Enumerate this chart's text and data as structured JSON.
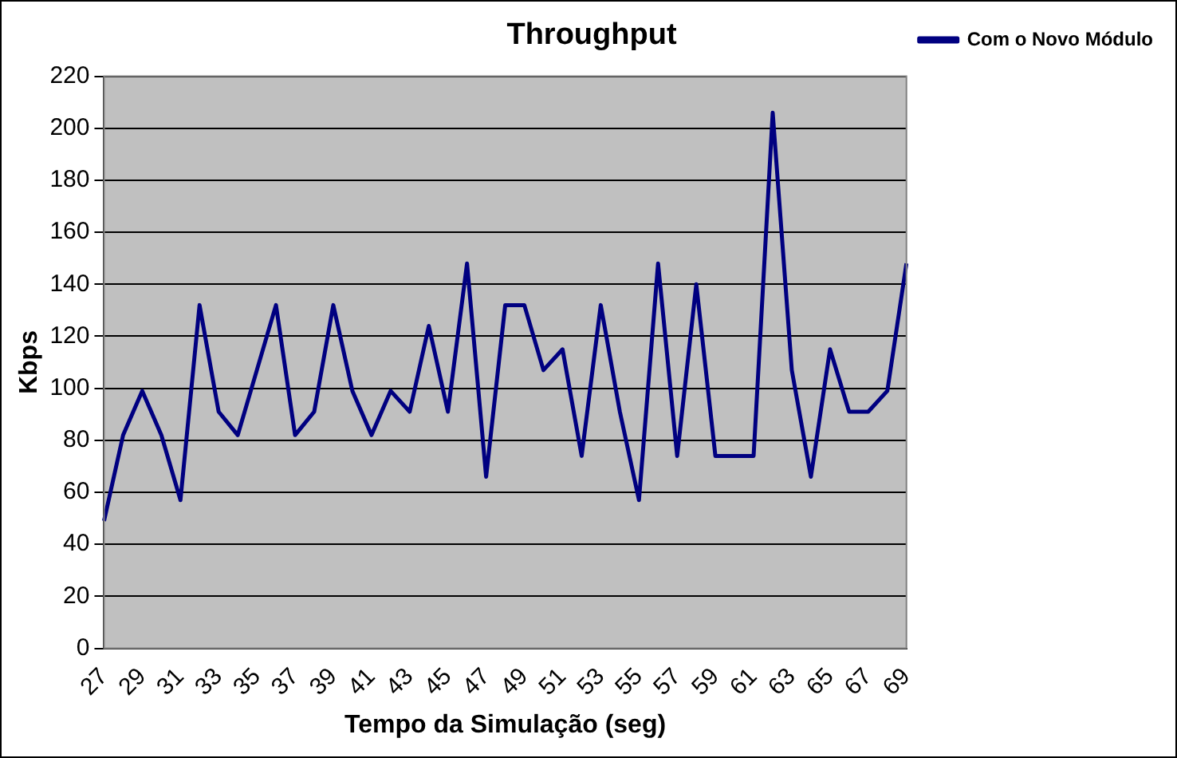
{
  "chart_data": {
    "type": "line",
    "title": "Throughput",
    "xlabel": "Tempo da Simulação (seg)",
    "ylabel": "Kbps",
    "categories": [
      "27",
      null,
      "29",
      null,
      "31",
      null,
      "33",
      null,
      "35",
      null,
      "37",
      null,
      "39",
      null,
      "41",
      null,
      "43",
      null,
      "45",
      null,
      "47",
      null,
      "49",
      null,
      "51",
      null,
      "53",
      null,
      "55",
      null,
      "57",
      null,
      "59",
      null,
      "61",
      null,
      "63",
      null,
      "65",
      null,
      "67",
      null,
      "69"
    ],
    "series": [
      {
        "name": "Com o Novo Módulo",
        "color": "#000080",
        "values": [
          49,
          82,
          99,
          82,
          57,
          132,
          91,
          82,
          107,
          132,
          82,
          91,
          132,
          99,
          82,
          99,
          91,
          124,
          91,
          148,
          66,
          132,
          132,
          107,
          115,
          74,
          132,
          91,
          57,
          148,
          74,
          140,
          74,
          74,
          74,
          206,
          107,
          66,
          115,
          91,
          91,
          99,
          148
        ]
      }
    ],
    "ylim": [
      0,
      220
    ],
    "yticks": [
      0,
      20,
      40,
      60,
      80,
      100,
      120,
      140,
      160,
      180,
      200,
      220
    ],
    "grid": "y",
    "legend": "top right",
    "marker": "none",
    "line_style": "solid"
  }
}
